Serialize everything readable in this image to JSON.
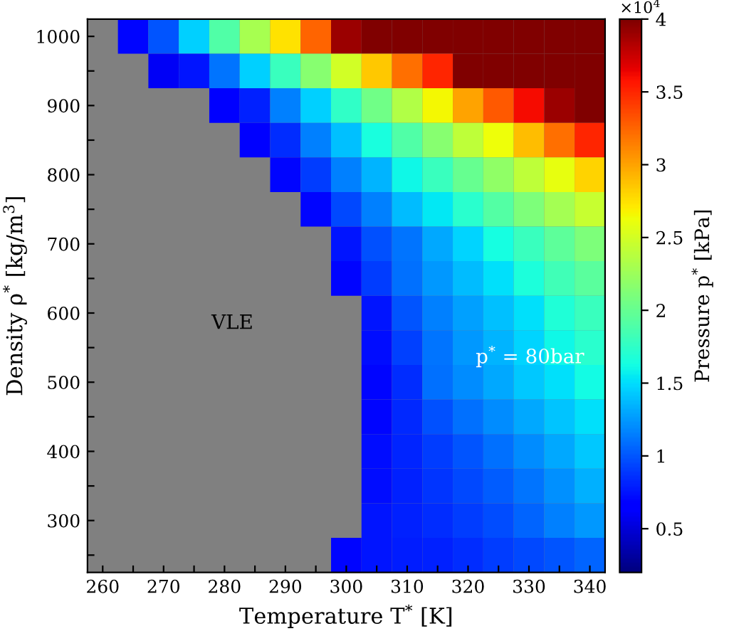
{
  "chart_data": {
    "type": "heatmap",
    "xlabel": "Temperature T$^{*}$ [K]",
    "ylabel": "Density ρ$^{*}$ [kg/m$^{3}$]",
    "clabel": "Pressure p$^{*}$ [kPa]",
    "categories": [
      "260",
      null,
      "270",
      null,
      "280",
      null,
      "290",
      null,
      "300",
      null,
      "310",
      null,
      "320",
      null,
      "330",
      null,
      "340"
    ],
    "y_categories": [
      "1000",
      null,
      "900",
      null,
      "800",
      null,
      "700",
      null,
      "600",
      null,
      "500",
      null,
      "400",
      null,
      "300",
      null
    ],
    "cells": [
      [
        null,
        0.7,
        1.0,
        1.45,
        1.9,
        2.3,
        2.75,
        3.25,
        3.9,
        4,
        4,
        4,
        4,
        4,
        4,
        4,
        4
      ],
      [
        null,
        null,
        0.6,
        0.75,
        1.12,
        1.45,
        1.8,
        2.15,
        2.5,
        2.85,
        3.2,
        3.5,
        4,
        4,
        4,
        4,
        4
      ],
      [
        null,
        null,
        null,
        null,
        0.65,
        0.8,
        1.15,
        1.45,
        1.75,
        2.05,
        2.35,
        2.65,
        3.0,
        3.3,
        3.6,
        3.9,
        4.0
      ],
      [
        null,
        null,
        null,
        null,
        null,
        0.65,
        0.85,
        1.15,
        1.4,
        1.65,
        1.9,
        2.15,
        2.4,
        2.62,
        2.9,
        3.2,
        3.5
      ],
      [
        null,
        null,
        null,
        null,
        null,
        null,
        0.7,
        0.9,
        1.15,
        1.35,
        1.6,
        1.8,
        2.0,
        2.2,
        2.4,
        2.6,
        2.8
      ],
      [
        null,
        null,
        null,
        null,
        null,
        null,
        null,
        0.7,
        0.95,
        1.15,
        1.38,
        1.55,
        1.72,
        1.92,
        2.1,
        2.28,
        2.45
      ],
      [
        null,
        null,
        null,
        null,
        null,
        null,
        null,
        null,
        0.75,
        0.98,
        1.12,
        1.3,
        1.47,
        1.63,
        1.8,
        1.96,
        2.1
      ],
      [
        null,
        null,
        null,
        null,
        null,
        null,
        null,
        null,
        0.7,
        0.9,
        1.1,
        1.25,
        1.38,
        1.52,
        1.66,
        1.83,
        1.95
      ],
      [
        null,
        null,
        null,
        null,
        null,
        null,
        null,
        null,
        null,
        0.75,
        1.0,
        1.15,
        1.28,
        1.4,
        1.52,
        1.67,
        1.8
      ],
      [
        null,
        null,
        null,
        null,
        null,
        null,
        null,
        null,
        null,
        0.72,
        0.92,
        1.12,
        1.24,
        1.35,
        1.47,
        1.6,
        1.72
      ],
      [
        null,
        null,
        null,
        null,
        null,
        null,
        null,
        null,
        null,
        0.7,
        0.85,
        1.1,
        1.2,
        1.3,
        1.42,
        1.52,
        1.62
      ],
      [
        null,
        null,
        null,
        null,
        null,
        null,
        null,
        null,
        null,
        0.7,
        0.83,
        0.98,
        1.1,
        1.2,
        1.3,
        1.41,
        1.52
      ],
      [
        null,
        null,
        null,
        null,
        null,
        null,
        null,
        null,
        null,
        0.72,
        0.82,
        0.9,
        1.0,
        1.1,
        1.2,
        1.3,
        1.42
      ],
      [
        null,
        null,
        null,
        null,
        null,
        null,
        null,
        null,
        null,
        0.73,
        0.8,
        0.87,
        0.95,
        1.03,
        1.12,
        1.22,
        1.33
      ],
      [
        null,
        null,
        null,
        null,
        null,
        null,
        null,
        null,
        null,
        0.75,
        0.8,
        0.85,
        0.9,
        0.97,
        1.05,
        1.15,
        1.25
      ],
      [
        null,
        null,
        null,
        null,
        null,
        null,
        null,
        null,
        0.7,
        0.75,
        0.78,
        0.8,
        0.85,
        0.9,
        0.95,
        1.0,
        1.05
      ]
    ],
    "clim": [
      0.2,
      4
    ],
    "cticks": [
      0.5,
      1,
      1.5,
      2,
      2.5,
      3,
      3.5,
      4
    ],
    "annotations": [
      "VLE",
      "p$^{*}$ = 80bar",
      "×10$^{4}$"
    ]
  }
}
